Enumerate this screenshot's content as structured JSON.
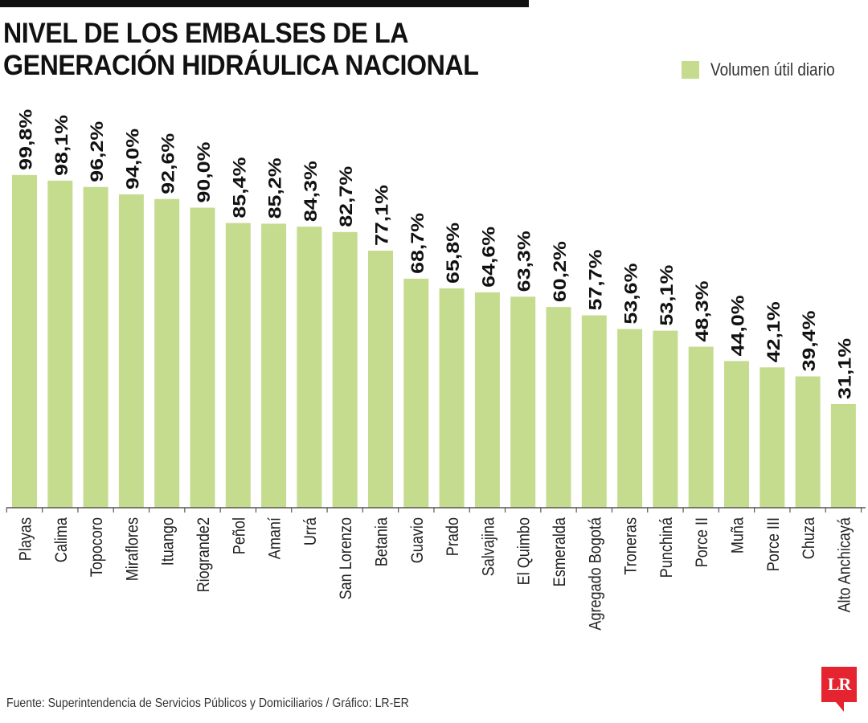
{
  "header": {
    "title": "NIVEL DE LOS EMBALSES DE LA GENERACIÓN HIDRÁULICA NACIONAL"
  },
  "legend": {
    "label": "Volumen útil diario",
    "color": "#c5dc8f"
  },
  "footer": {
    "source": "Fuente: Superintendencia de Servicios Públicos y Domiciliarios / Gráfico: LR-ER",
    "logo_text": "LR",
    "logo_color": "#e4242e"
  },
  "chart_data": {
    "type": "bar",
    "title": "NIVEL DE LOS EMBALSES DE LA GENERACIÓN HIDRÁULICA NACIONAL",
    "xlabel": "",
    "ylabel": "",
    "ylim": [
      0,
      100
    ],
    "grid": false,
    "legend_position": "top-right",
    "bar_color": "#c5dc8f",
    "categories": [
      "Playas",
      "Calima",
      "Topocoro",
      "Miraflores",
      "Ituango",
      "Riogrande2",
      "Peñol",
      "Amaní",
      "Urrá",
      "San Lorenzo",
      "Betania",
      "Guavio",
      "Prado",
      "Salvajina",
      "El Quimbo",
      "Esmeralda",
      "Agregado Bogotá",
      "Troneras",
      "Punchiná",
      "Porce II",
      "Muña",
      "Porce III",
      "Chuza",
      "Alto Anchicayá"
    ],
    "series": [
      {
        "name": "Volumen útil diario",
        "values": [
          99.8,
          98.1,
          96.2,
          94.0,
          92.6,
          90.0,
          85.4,
          85.2,
          84.3,
          82.7,
          77.1,
          68.7,
          65.8,
          64.6,
          63.3,
          60.2,
          57.7,
          53.6,
          53.1,
          48.3,
          44.0,
          42.1,
          39.4,
          31.1
        ]
      }
    ],
    "data_labels": [
      "99,8%",
      "98,1%",
      "96,2%",
      "94,0%",
      "92,6%",
      "90,0%",
      "85,4%",
      "85,2%",
      "84,3%",
      "82,7%",
      "77,1%",
      "68,7%",
      "65,8%",
      "64,6%",
      "63,3%",
      "60,2%",
      "57,7%",
      "53,6%",
      "53,1%",
      "48,3%",
      "44,0%",
      "42,1%",
      "39,4%",
      "31,1%"
    ]
  }
}
